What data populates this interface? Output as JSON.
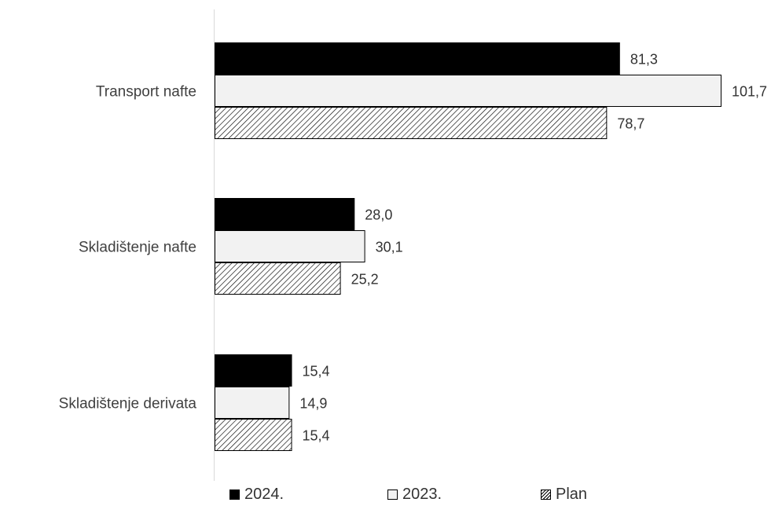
{
  "chart_data": {
    "type": "bar",
    "orientation": "horizontal",
    "categories": [
      "Transport nafte",
      "Skladištenje nafte",
      "Skladištenje derivata"
    ],
    "series": [
      {
        "name": "2024.",
        "values": [
          81.3,
          28.0,
          15.4
        ],
        "labels": [
          "81,3",
          "28,0",
          "15,4"
        ],
        "fill": "#000000",
        "pattern": "solid"
      },
      {
        "name": "2023.",
        "values": [
          101.7,
          30.1,
          14.9
        ],
        "labels": [
          "101,7",
          "30,1",
          "14,9"
        ],
        "fill": "#f2f2f2",
        "pattern": "solid"
      },
      {
        "name": "Plan",
        "values": [
          78.7,
          25.2,
          15.4
        ],
        "labels": [
          "78,7",
          "25,2",
          "15,4"
        ],
        "fill": "#ffffff",
        "pattern": "diagonal-hatch"
      }
    ],
    "xlim": [
      0,
      101.7
    ],
    "grid": false,
    "legend_position": "bottom",
    "colors": {
      "bar_stroke": "#000000",
      "axis": "#d9d9d9",
      "text": "#404040"
    }
  }
}
